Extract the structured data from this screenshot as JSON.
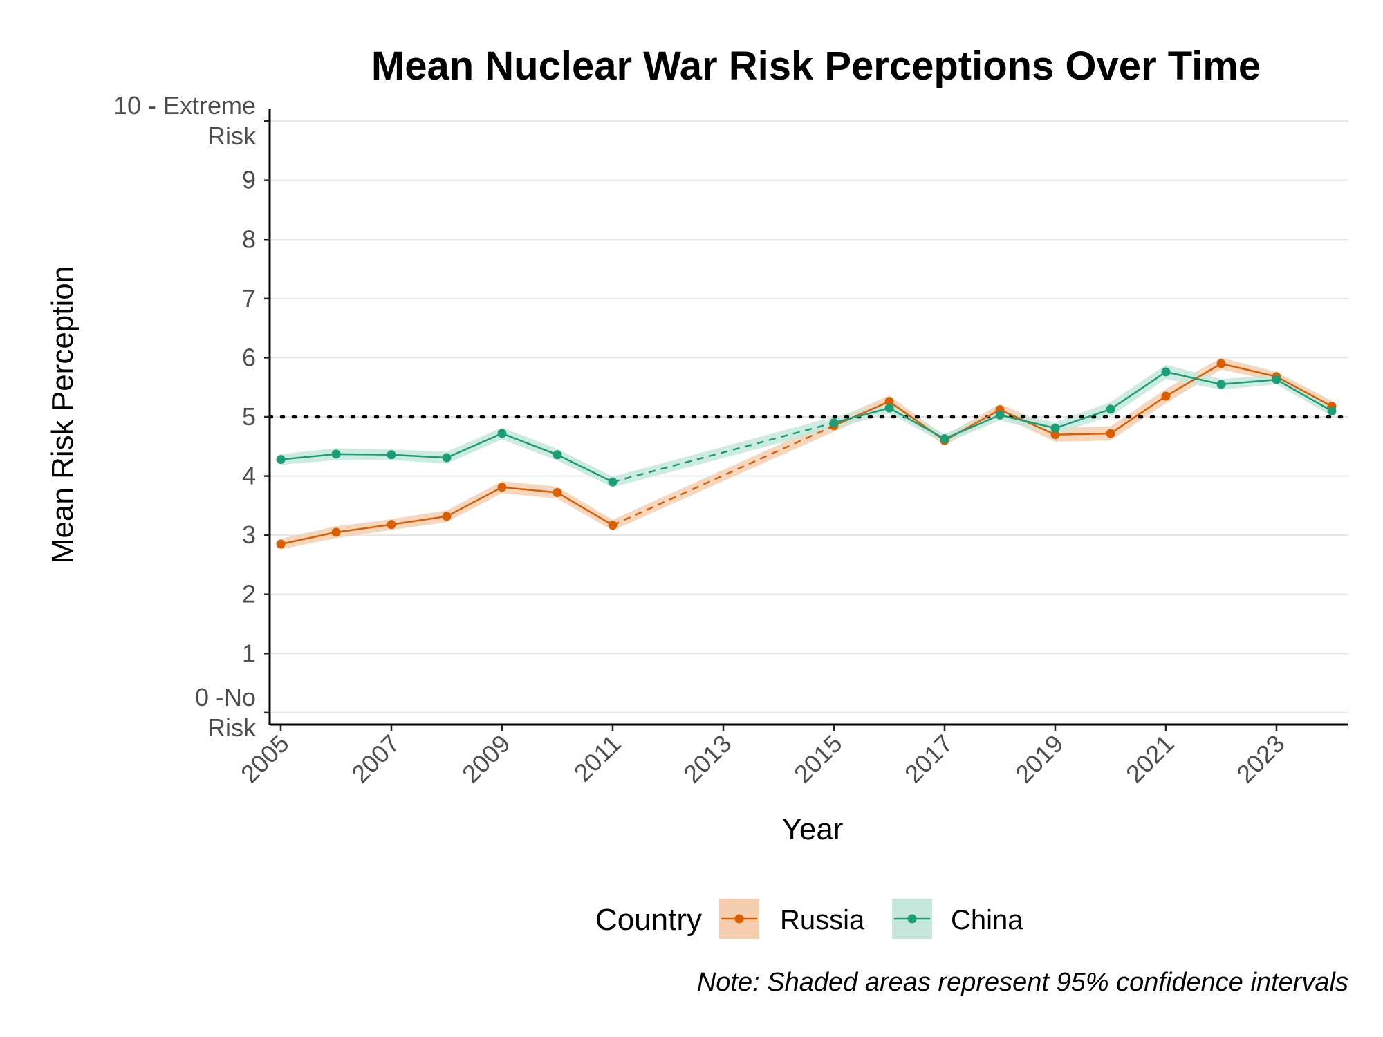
{
  "chart_data": {
    "type": "line",
    "title": "Mean Nuclear War Risk Perceptions Over Time",
    "xlabel": "Year",
    "ylabel": "Mean Risk Perception",
    "xlim": [
      2004.8,
      2024.3
    ],
    "ylim": [
      -0.2,
      10.2
    ],
    "x_ticks": [
      "2005",
      "2007",
      "2009",
      "2011",
      "2013",
      "2015",
      "2017",
      "2019",
      "2021",
      "2023"
    ],
    "y_ticks": [
      {
        "value": 0,
        "label": [
          "0 -No",
          "Risk"
        ]
      },
      {
        "value": 1,
        "label": [
          "1"
        ]
      },
      {
        "value": 2,
        "label": [
          "2"
        ]
      },
      {
        "value": 3,
        "label": [
          "3"
        ]
      },
      {
        "value": 4,
        "label": [
          "4"
        ]
      },
      {
        "value": 5,
        "label": [
          "5"
        ]
      },
      {
        "value": 6,
        "label": [
          "6"
        ]
      },
      {
        "value": 7,
        "label": [
          "7"
        ]
      },
      {
        "value": 8,
        "label": [
          "8"
        ]
      },
      {
        "value": 9,
        "label": [
          "9"
        ]
      },
      {
        "value": 10,
        "label": [
          "10 - Extreme",
          "Risk"
        ]
      }
    ],
    "reference_line": {
      "y": 5,
      "style": "dotted",
      "color": "#000000"
    },
    "gap": {
      "from": 2011,
      "to": 2015,
      "style": "dashed"
    },
    "series": [
      {
        "name": "Russia",
        "color": "#d95f02",
        "band_color": "#f5cfb0",
        "x": [
          2005,
          2006,
          2007,
          2008,
          2009,
          2010,
          2011,
          2015,
          2016,
          2017,
          2018,
          2019,
          2020,
          2021,
          2022,
          2023,
          2024
        ],
        "values": [
          2.85,
          3.05,
          3.18,
          3.32,
          3.81,
          3.72,
          3.17,
          4.85,
          5.26,
          4.6,
          5.12,
          4.7,
          4.72,
          5.35,
          5.9,
          5.68,
          5.18
        ],
        "ci_half": [
          0.09,
          0.1,
          0.09,
          0.1,
          0.1,
          0.1,
          0.09,
          0.1,
          0.1,
          0.08,
          0.1,
          0.12,
          0.12,
          0.12,
          0.1,
          0.08,
          0.09
        ]
      },
      {
        "name": "China",
        "color": "#1b9e77",
        "band_color": "#c4e7da",
        "x": [
          2005,
          2006,
          2007,
          2008,
          2009,
          2010,
          2011,
          2015,
          2016,
          2017,
          2018,
          2019,
          2020,
          2021,
          2022,
          2023,
          2024
        ],
        "values": [
          4.28,
          4.37,
          4.36,
          4.31,
          4.72,
          4.36,
          3.9,
          4.9,
          5.15,
          4.63,
          5.03,
          4.81,
          5.13,
          5.76,
          5.55,
          5.63,
          5.1
        ],
        "ci_half": [
          0.09,
          0.1,
          0.09,
          0.1,
          0.1,
          0.1,
          0.09,
          0.1,
          0.09,
          0.08,
          0.09,
          0.1,
          0.12,
          0.12,
          0.09,
          0.08,
          0.09
        ]
      }
    ],
    "legend": {
      "title": "Country",
      "position": "bottom"
    },
    "note": "Note: Shaded areas represent 95% confidence intervals"
  }
}
